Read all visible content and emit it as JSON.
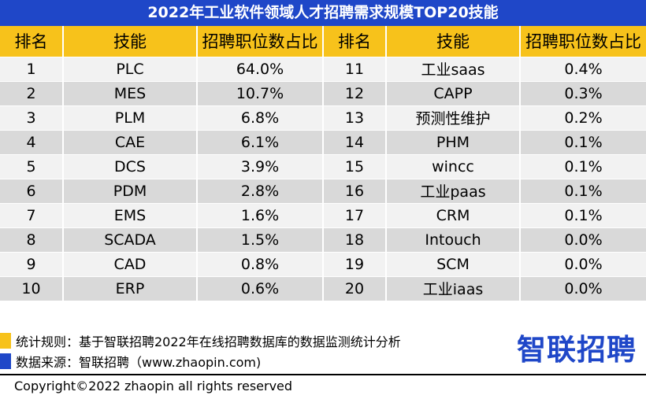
{
  "title": "2022年工业软件领域人才招聘需求规模TOP20技能",
  "table": {
    "headers": [
      "排名",
      "技能",
      "招聘职位数占比",
      "排名",
      "技能",
      "招聘职位数占比"
    ],
    "rows": [
      [
        "1",
        "PLC",
        "64.0%",
        "11",
        "工业saas",
        "0.4%"
      ],
      [
        "2",
        "MES",
        "10.7%",
        "12",
        "CAPP",
        "0.3%"
      ],
      [
        "3",
        "PLM",
        "6.8%",
        "13",
        "预测性维护",
        "0.2%"
      ],
      [
        "4",
        "CAE",
        "6.1%",
        "14",
        "PHM",
        "0.1%"
      ],
      [
        "5",
        "DCS",
        "3.9%",
        "15",
        "wincc",
        "0.1%"
      ],
      [
        "6",
        "PDM",
        "2.8%",
        "16",
        "工业paas",
        "0.1%"
      ],
      [
        "7",
        "EMS",
        "1.6%",
        "17",
        "CRM",
        "0.1%"
      ],
      [
        "8",
        "SCADA",
        "1.5%",
        "18",
        "Intouch",
        "0.0%"
      ],
      [
        "9",
        "CAD",
        "0.8%",
        "19",
        "SCM",
        "0.0%"
      ],
      [
        "10",
        "ERP",
        "0.6%",
        "20",
        "工业iaas",
        "0.0%"
      ]
    ]
  },
  "notes": {
    "rule": "统计规则：基于智联招聘2022年在线招聘数据库的数据监测统计分析",
    "source": "数据来源：智联招聘（www.zhaopin.com)"
  },
  "logo": "智联招聘",
  "copyright": "Copyright©2022 zhaopin all rights reserved",
  "colors": {
    "brand_blue": "#1f47c8",
    "header_yellow": "#f7c21b"
  }
}
